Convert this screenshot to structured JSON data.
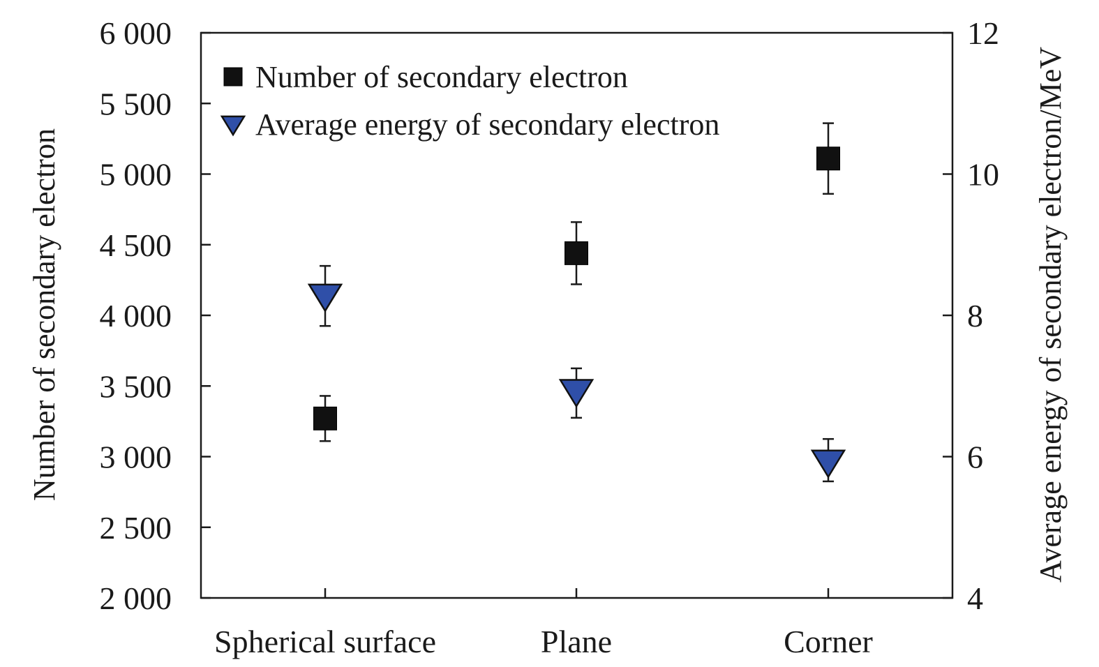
{
  "chart_data": {
    "type": "scatter",
    "categories": [
      "Spherical surface",
      "Plane",
      "Corner"
    ],
    "ylabel": "Number of secondary electron",
    "y2label": "Average energy of secondary electron/MeV",
    "ylim": [
      2000,
      6000
    ],
    "y2lim": [
      4,
      12
    ],
    "yticks": [
      2000,
      2500,
      3000,
      3500,
      4000,
      4500,
      5000,
      5500,
      6000
    ],
    "yticklabels": [
      "2 000",
      "2 500",
      "3 000",
      "3 500",
      "4 000",
      "4 500",
      "5 000",
      "5 500",
      "6 000"
    ],
    "y2ticks": [
      4,
      6,
      8,
      10,
      12
    ],
    "y2ticklabels": [
      "4",
      "6",
      "8",
      "10",
      "12"
    ],
    "grid": false,
    "legend_position": "top-left",
    "series": [
      {
        "name": "Number of secondary electron",
        "axis": "left",
        "marker": "square",
        "color": "#111111",
        "values": [
          3270,
          4440,
          5110
        ],
        "error_upper": [
          3430,
          4660,
          5360
        ],
        "error_lower": [
          3110,
          4220,
          4860
        ]
      },
      {
        "name": "Average energy of secondary electron",
        "axis": "right",
        "marker": "triangle-down",
        "color": "#2f4fa8",
        "values": [
          8.25,
          6.9,
          5.9
        ],
        "error_upper": [
          8.7,
          7.25,
          6.25
        ],
        "error_lower": [
          7.85,
          6.55,
          5.65
        ]
      }
    ]
  }
}
